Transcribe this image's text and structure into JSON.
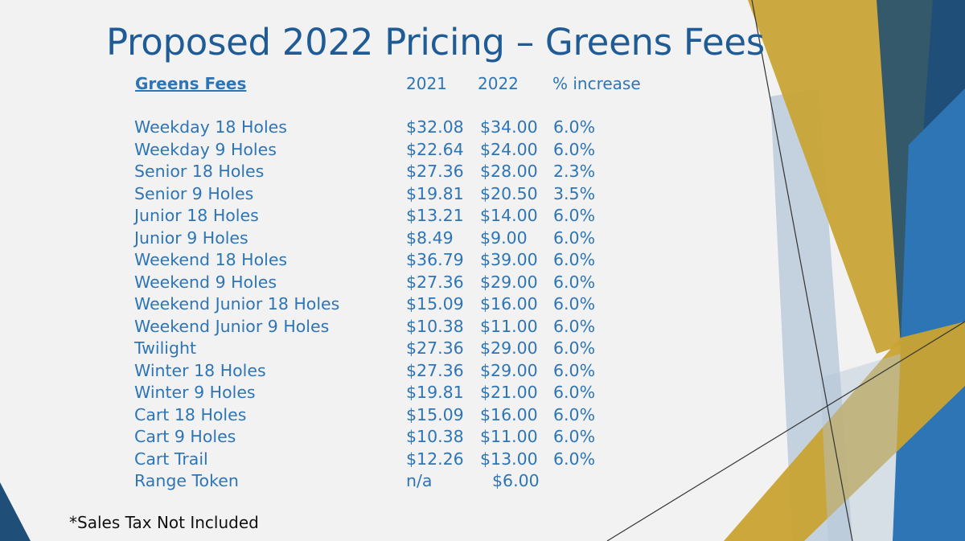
{
  "slide": {
    "title": "Proposed 2022 Pricing – Greens Fees",
    "headers": {
      "name": "Greens Fees",
      "y2021": "2021",
      "y2022": "2022",
      "increase": "% increase"
    },
    "rows": [
      {
        "name": "Weekday 18 Holes",
        "y2021": "$32.08",
        "y2022": "$34.00",
        "increase": "6.0%"
      },
      {
        "name": "Weekday 9 Holes",
        "y2021": "$22.64",
        "y2022": "$24.00",
        "increase": "6.0%"
      },
      {
        "name": "Senior 18 Holes",
        "y2021": "$27.36",
        "y2022": "$28.00",
        "increase": "2.3%"
      },
      {
        "name": "Senior 9 Holes",
        "y2021": "$19.81",
        "y2022": "$20.50",
        "increase": "3.5%"
      },
      {
        "name": "Junior 18 Holes",
        "y2021": "$13.21",
        "y2022": "$14.00",
        "increase": "6.0%"
      },
      {
        "name": "Junior 9 Holes",
        "y2021": "$8.49",
        "y2022": "$9.00",
        "increase": "6.0%"
      },
      {
        "name": "Weekend 18 Holes",
        "y2021": "$36.79",
        "y2022": "$39.00",
        "increase": "6.0%"
      },
      {
        "name": "Weekend 9 Holes",
        "y2021": "$27.36",
        "y2022": "$29.00",
        "increase": "6.0%"
      },
      {
        "name": "Weekend Junior 18 Holes",
        "y2021": "$15.09",
        "y2022": "$16.00",
        "increase": "6.0%"
      },
      {
        "name": "Weekend Junior 9 Holes",
        "y2021": "$10.38",
        "y2022": "$11.00",
        "increase": "6.0%"
      },
      {
        "name": "Twilight",
        "y2021": "$27.36",
        "y2022": "$29.00",
        "increase": "6.0%"
      },
      {
        "name": "Winter 18 Holes",
        "y2021": "$27.36",
        "y2022": "$29.00",
        "increase": "6.0%"
      },
      {
        "name": "Winter 9 Holes",
        "y2021": "$19.81",
        "y2022": "$21.00",
        "increase": "6.0%"
      },
      {
        "name": "Cart 18 Holes",
        "y2021": "$15.09",
        "y2022": "$16.00",
        "increase": "6.0%"
      },
      {
        "name": "Cart 9 Holes",
        "y2021": "$10.38",
        "y2022": "$11.00",
        "increase": "6.0%"
      },
      {
        "name": "Cart Trail",
        "y2021": "$12.26",
        "y2022": "$13.00",
        "increase": "6.0%"
      },
      {
        "name": "Range Token",
        "y2021": "n/a",
        "y2022": "$6.00",
        "increase": ""
      }
    ],
    "note": "*Sales Tax Not Included"
  },
  "colors": {
    "background": "#f2f2f2",
    "title": "#1f5b95",
    "text": "#2e75b6",
    "gold": "#c9a331",
    "navy": "#1f4e79",
    "blue": "#2e75b6",
    "light_blue": "#b4c6d8",
    "slate": "#34596a"
  }
}
